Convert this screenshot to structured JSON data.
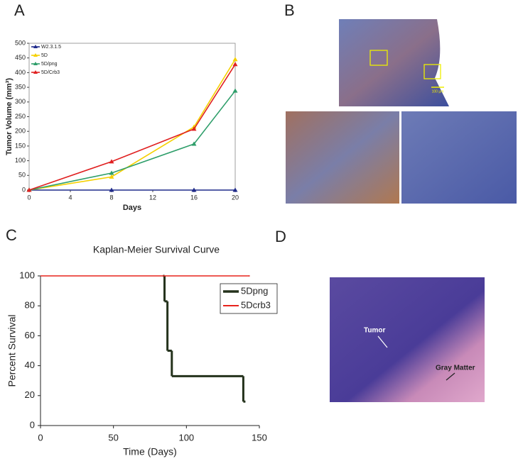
{
  "panel_labels": [
    "A",
    "B",
    "C",
    "D"
  ],
  "image_annotations": {
    "scale_bar": "100 µm",
    "tumor": "Tumor",
    "gray_matter": "Gray Matter"
  },
  "chart_data": [
    {
      "type": "line",
      "y_label": "Tumor Volume (mm³)",
      "x_label": "Days",
      "x": [
        0,
        8,
        16,
        20
      ],
      "xlim": [
        0,
        20
      ],
      "xticks": [
        0,
        4,
        8,
        12,
        16,
        20
      ],
      "ylim": [
        0,
        500
      ],
      "yticks": [
        0,
        50,
        100,
        150,
        200,
        250,
        300,
        350,
        400,
        450,
        500
      ],
      "legend": "top-left",
      "series": [
        {
          "name": "W2.3.1.5",
          "color": "#1f2a8a",
          "values": [
            0,
            0,
            0,
            0
          ]
        },
        {
          "name": "5D",
          "color": "#f5d000",
          "values": [
            0,
            45,
            215,
            445
          ]
        },
        {
          "name": "5D/png",
          "color": "#2e9e6a",
          "values": [
            0,
            58,
            157,
            338
          ]
        },
        {
          "name": "5D/Crb3",
          "color": "#e02020",
          "values": [
            0,
            97,
            208,
            428
          ]
        }
      ]
    },
    {
      "type": "step",
      "title": "Kaplan-Meier Survival Curve",
      "y_label": "Percent Survival",
      "x_label": "Time (Days)",
      "xlim": [
        0,
        150
      ],
      "xticks": [
        0,
        50,
        100,
        150
      ],
      "ylim": [
        0,
        100
      ],
      "yticks": [
        0,
        20,
        40,
        60,
        80,
        100
      ],
      "legend": "top-right",
      "series": [
        {
          "name": "5Dpng",
          "color": "#24321c",
          "x": [
            84,
            85,
            87,
            90,
            139
          ],
          "values": [
            100,
            83,
            50,
            33,
            16
          ]
        },
        {
          "name": "5Dcrb3",
          "color": "#e8231c",
          "x": [
            0,
            142
          ],
          "values": [
            100,
            100
          ]
        }
      ]
    }
  ]
}
